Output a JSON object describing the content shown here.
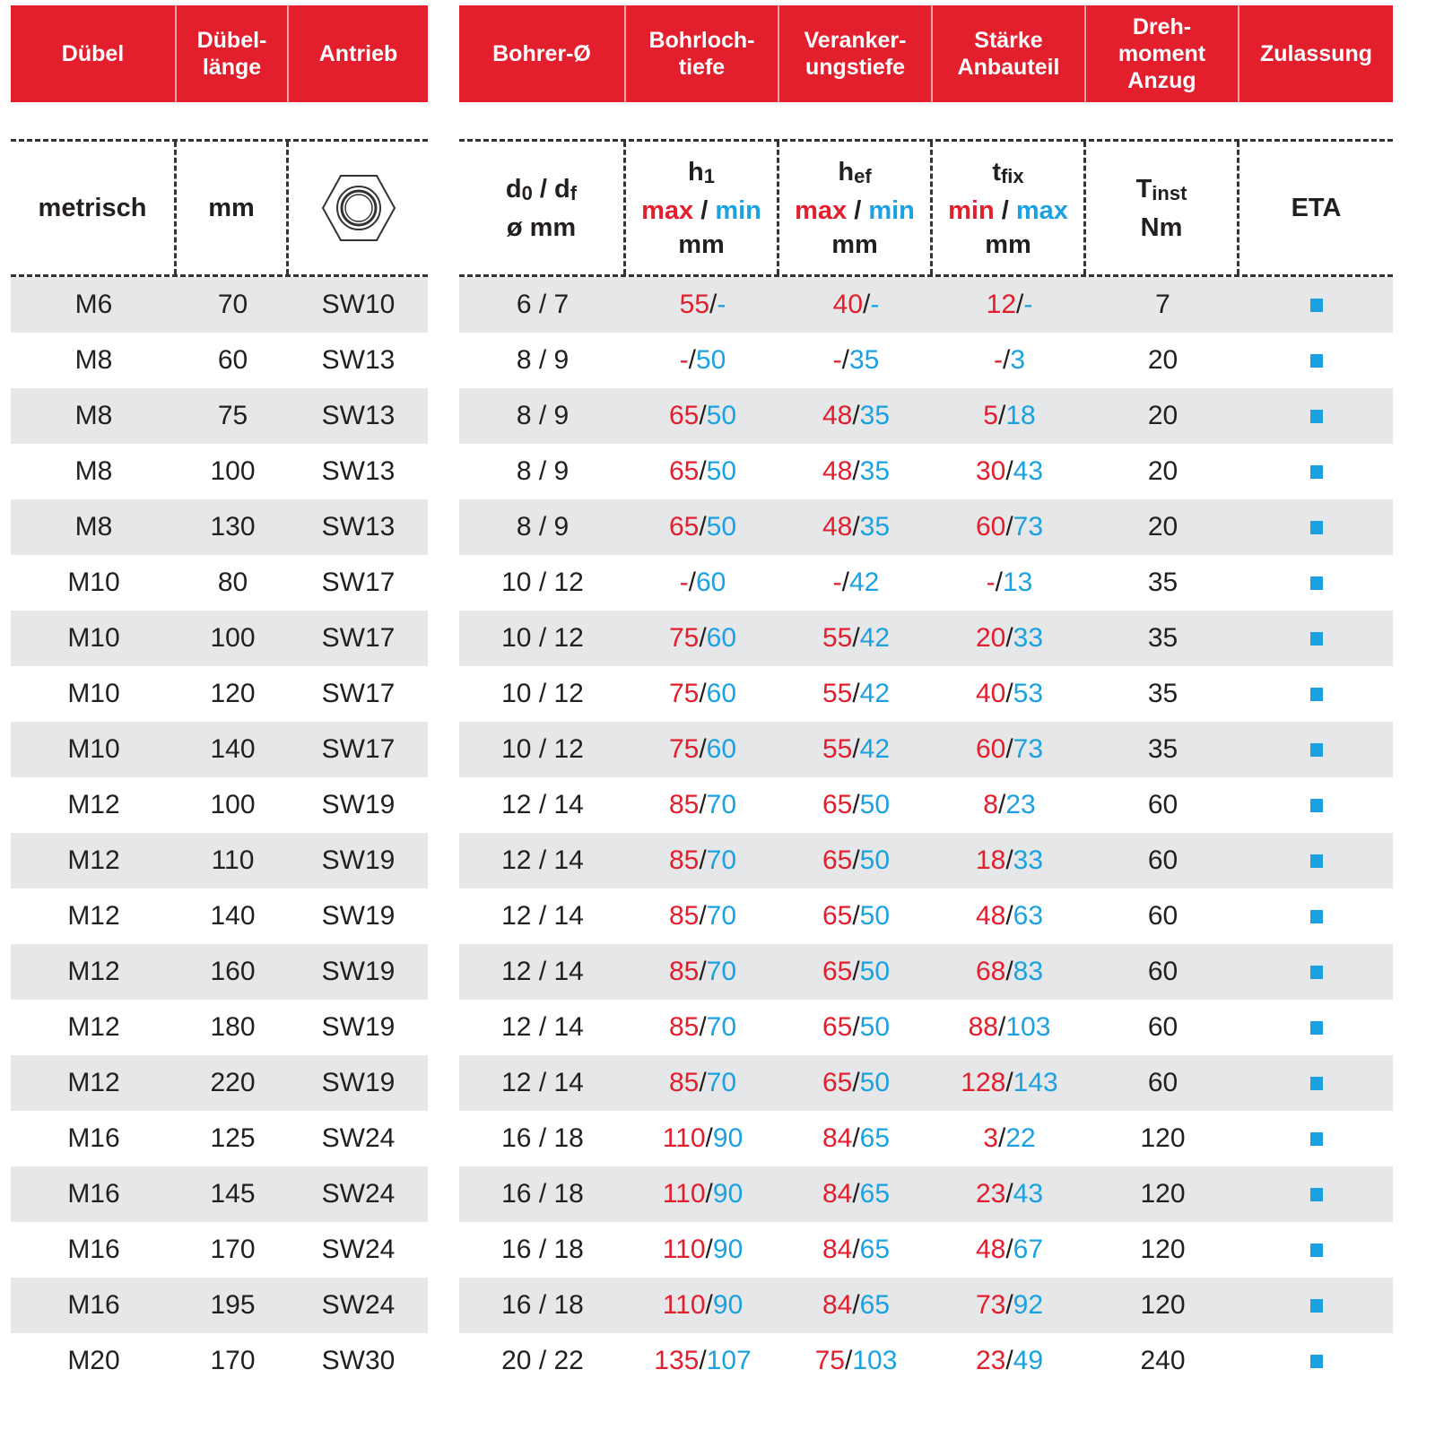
{
  "colors": {
    "header": "#e31e2d",
    "red": "#e31e2d",
    "blue": "#1ba1e2",
    "stripe": "#e6e7e8"
  },
  "header_left": [
    "Dübel",
    "Dübel-\nlänge",
    "Antrieb"
  ],
  "header_right": [
    "Bohrer-Ø",
    "Bohrloch-\ntiefe",
    "Veranker-\nungstiefe",
    "Stärke\nAnbauteil",
    "Dreh-\nmoment\nAnzug",
    "Zulassung"
  ],
  "sub_left": {
    "c0": "metrisch",
    "c1": "mm",
    "c2_icon": "hex-nut-icon"
  },
  "sub_right": {
    "bohrer": {
      "d": "d",
      "d_sub": "0",
      "sep": " / ",
      "f": "d",
      "f_sub": "f",
      "unit": "ø mm"
    },
    "h1": {
      "sym": "h",
      "sym_sub": "1",
      "red": "max",
      "sep": " / ",
      "blue": "min",
      "unit": "mm"
    },
    "hef": {
      "sym": "h",
      "sym_sub": "ef",
      "red": "max",
      "sep": " / ",
      "blue": "min",
      "unit": "mm"
    },
    "tfix": {
      "sym": "t",
      "sym_sub": "fix",
      "red": "min",
      "sep": " / ",
      "blue": "max",
      "unit": "mm"
    },
    "tinst": {
      "sym": "T",
      "sym_sub": "inst",
      "unit": "Nm"
    },
    "eta": "ETA"
  },
  "rows": [
    {
      "m": "M6",
      "l": "70",
      "sw": "SW10",
      "d": "6 / 7",
      "h1": [
        "55",
        "-"
      ],
      "hef": [
        "40",
        "-"
      ],
      "tfix": [
        "12",
        "-"
      ],
      "t": "7",
      "eta": true
    },
    {
      "m": "M8",
      "l": "60",
      "sw": "SW13",
      "d": "8 / 9",
      "h1": [
        "-",
        "50"
      ],
      "hef": [
        "-",
        "35"
      ],
      "tfix": [
        "-",
        "3"
      ],
      "t": "20",
      "eta": true
    },
    {
      "m": "M8",
      "l": "75",
      "sw": "SW13",
      "d": "8 / 9",
      "h1": [
        "65",
        "50"
      ],
      "hef": [
        "48",
        "35"
      ],
      "tfix": [
        "5",
        "18"
      ],
      "t": "20",
      "eta": true
    },
    {
      "m": "M8",
      "l": "100",
      "sw": "SW13",
      "d": "8 / 9",
      "h1": [
        "65",
        "50"
      ],
      "hef": [
        "48",
        "35"
      ],
      "tfix": [
        "30",
        "43"
      ],
      "t": "20",
      "eta": true
    },
    {
      "m": "M8",
      "l": "130",
      "sw": "SW13",
      "d": "8 / 9",
      "h1": [
        "65",
        "50"
      ],
      "hef": [
        "48",
        "35"
      ],
      "tfix": [
        "60",
        "73"
      ],
      "t": "20",
      "eta": true
    },
    {
      "m": "M10",
      "l": "80",
      "sw": "SW17",
      "d": "10 / 12",
      "h1": [
        "-",
        "60"
      ],
      "hef": [
        "-",
        "42"
      ],
      "tfix": [
        "-",
        "13"
      ],
      "t": "35",
      "eta": true
    },
    {
      "m": "M10",
      "l": "100",
      "sw": "SW17",
      "d": "10 / 12",
      "h1": [
        "75",
        "60"
      ],
      "hef": [
        "55",
        "42"
      ],
      "tfix": [
        "20",
        "33"
      ],
      "t": "35",
      "eta": true
    },
    {
      "m": "M10",
      "l": "120",
      "sw": "SW17",
      "d": "10 / 12",
      "h1": [
        "75",
        "60"
      ],
      "hef": [
        "55",
        "42"
      ],
      "tfix": [
        "40",
        "53"
      ],
      "t": "35",
      "eta": true
    },
    {
      "m": "M10",
      "l": "140",
      "sw": "SW17",
      "d": "10 / 12",
      "h1": [
        "75",
        "60"
      ],
      "hef": [
        "55",
        "42"
      ],
      "tfix": [
        "60",
        "73"
      ],
      "t": "35",
      "eta": true
    },
    {
      "m": "M12",
      "l": "100",
      "sw": "SW19",
      "d": "12 / 14",
      "h1": [
        "85",
        "70"
      ],
      "hef": [
        "65",
        "50"
      ],
      "tfix": [
        "8",
        "23"
      ],
      "t": "60",
      "eta": true
    },
    {
      "m": "M12",
      "l": "110",
      "sw": "SW19",
      "d": "12 / 14",
      "h1": [
        "85",
        "70"
      ],
      "hef": [
        "65",
        "50"
      ],
      "tfix": [
        "18",
        "33"
      ],
      "t": "60",
      "eta": true
    },
    {
      "m": "M12",
      "l": "140",
      "sw": "SW19",
      "d": "12 / 14",
      "h1": [
        "85",
        "70"
      ],
      "hef": [
        "65",
        "50"
      ],
      "tfix": [
        "48",
        "63"
      ],
      "t": "60",
      "eta": true
    },
    {
      "m": "M12",
      "l": "160",
      "sw": "SW19",
      "d": "12 / 14",
      "h1": [
        "85",
        "70"
      ],
      "hef": [
        "65",
        "50"
      ],
      "tfix": [
        "68",
        "83"
      ],
      "t": "60",
      "eta": true
    },
    {
      "m": "M12",
      "l": "180",
      "sw": "SW19",
      "d": "12 / 14",
      "h1": [
        "85",
        "70"
      ],
      "hef": [
        "65",
        "50"
      ],
      "tfix": [
        "88",
        "103"
      ],
      "t": "60",
      "eta": true
    },
    {
      "m": "M12",
      "l": "220",
      "sw": "SW19",
      "d": "12 / 14",
      "h1": [
        "85",
        "70"
      ],
      "hef": [
        "65",
        "50"
      ],
      "tfix": [
        "128",
        "143"
      ],
      "t": "60",
      "eta": true
    },
    {
      "m": "M16",
      "l": "125",
      "sw": "SW24",
      "d": "16 / 18",
      "h1": [
        "110",
        "90"
      ],
      "hef": [
        "84",
        "65"
      ],
      "tfix": [
        "3",
        "22"
      ],
      "t": "120",
      "eta": true
    },
    {
      "m": "M16",
      "l": "145",
      "sw": "SW24",
      "d": "16 / 18",
      "h1": [
        "110",
        "90"
      ],
      "hef": [
        "84",
        "65"
      ],
      "tfix": [
        "23",
        "43"
      ],
      "t": "120",
      "eta": true
    },
    {
      "m": "M16",
      "l": "170",
      "sw": "SW24",
      "d": "16 / 18",
      "h1": [
        "110",
        "90"
      ],
      "hef": [
        "84",
        "65"
      ],
      "tfix": [
        "48",
        "67"
      ],
      "t": "120",
      "eta": true
    },
    {
      "m": "M16",
      "l": "195",
      "sw": "SW24",
      "d": "16 / 18",
      "h1": [
        "110",
        "90"
      ],
      "hef": [
        "84",
        "65"
      ],
      "tfix": [
        "73",
        "92"
      ],
      "t": "120",
      "eta": true
    },
    {
      "m": "M20",
      "l": "170",
      "sw": "SW30",
      "d": "20 / 22",
      "h1": [
        "135",
        "107"
      ],
      "hef": [
        "75",
        "103"
      ],
      "tfix": [
        "23",
        "49"
      ],
      "t": "240",
      "eta": true
    }
  ]
}
